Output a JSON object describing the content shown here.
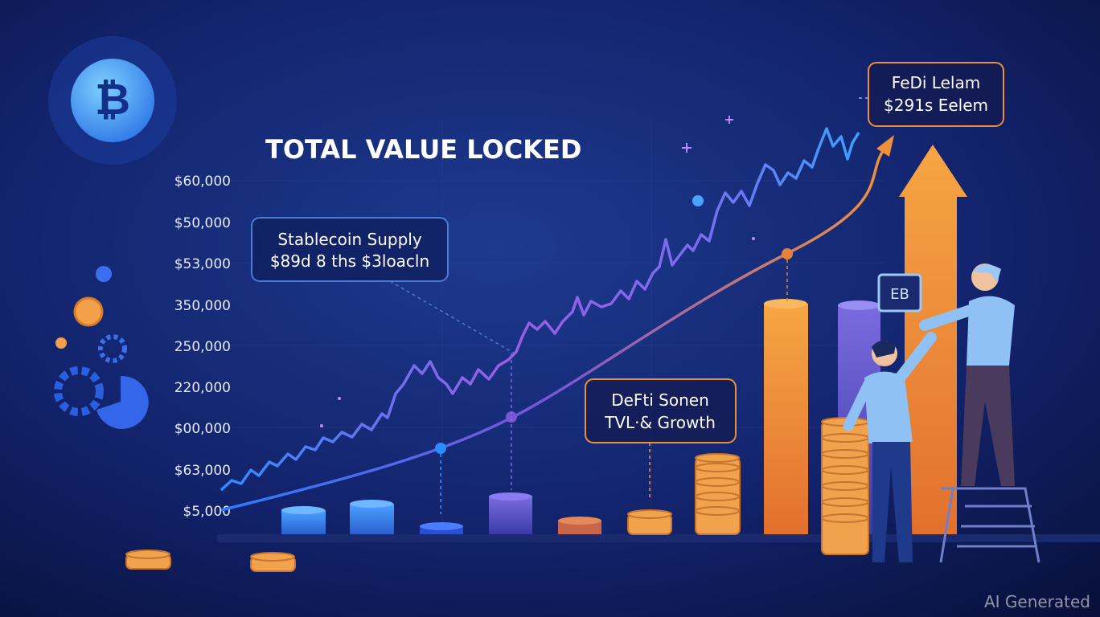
{
  "header": {
    "title": "TOTAL VALUE LOCKED",
    "icon": "₿"
  },
  "axis_labels": [
    "$60,000",
    "$50,000",
    "$53,000",
    "350,000",
    "250,000",
    "220,000",
    "$00,000",
    "$63,000",
    "$5,000"
  ],
  "callouts": [
    {
      "title": "Stablecoin Supply",
      "subtitle": "$89d 8 ths $3loacln"
    },
    {
      "title": "DeFti Sonen",
      "subtitle": "TVL·& Growth"
    },
    {
      "title": "FeDi Lelam",
      "subtitle": "$291s Eelem"
    }
  ],
  "tablet": "EB",
  "watermark": "AI Generated"
}
